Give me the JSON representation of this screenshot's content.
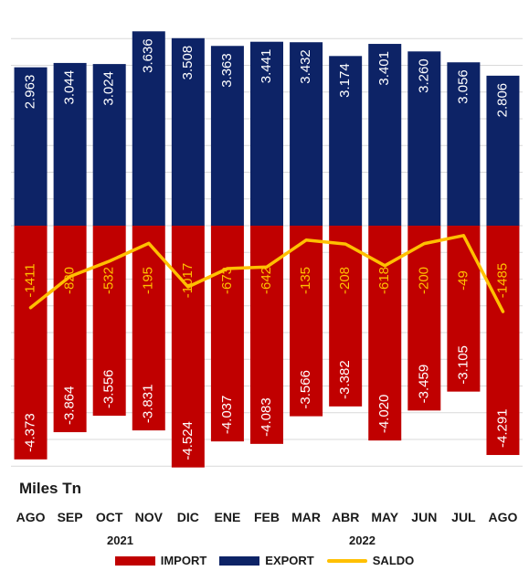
{
  "chart_data": {
    "type": "bar",
    "unit_label": "Miles Tn",
    "categories": [
      "AGO",
      "SEP",
      "OCT",
      "NOV",
      "DIC",
      "ENE",
      "FEB",
      "MAR",
      "ABR",
      "MAY",
      "JUN",
      "JUL",
      "AGO"
    ],
    "years": [
      {
        "label": "2021",
        "first_category_index": 0
      },
      {
        "label": "2022",
        "first_category_index": 5
      }
    ],
    "ylim": [
      -4700,
      3800
    ],
    "grid": true,
    "legend_position": "bottom",
    "series": [
      {
        "name": "IMPORT",
        "color": "#c00000",
        "values": [
          -4373,
          -3864,
          -3556,
          -3831,
          -4524,
          -4037,
          -4083,
          -3566,
          -3382,
          -4020,
          -3459,
          -3105,
          -4291
        ],
        "labels": [
          "-4.373",
          "-3.864",
          "-3.556",
          "-3.831",
          "-4.524",
          "-4.037",
          "-4.083",
          "-3.566",
          "-3.382",
          "-4.020",
          "-3.459",
          "-3.105",
          "-4.291"
        ]
      },
      {
        "name": "EXPORT",
        "color": "#0d2366",
        "values": [
          2963,
          3044,
          3024,
          3636,
          3508,
          3363,
          3441,
          3432,
          3174,
          3401,
          3260,
          3056,
          2806
        ],
        "labels": [
          "2.963",
          "3.044",
          "3.024",
          "3.636",
          "3.508",
          "3.363",
          "3.441",
          "3.432",
          "3.174",
          "3.401",
          "3.260",
          "3.056",
          "2.806"
        ]
      },
      {
        "name": "SALDO",
        "color": "#ffc000",
        "values": [
          -1411,
          -820,
          -532,
          -195,
          -1017,
          -673,
          -642,
          -135,
          -208,
          -618,
          -200,
          -49,
          -1485
        ],
        "labels": [
          "-1411",
          "-820",
          "-532",
          "-195",
          "-1017",
          "-673",
          "-642",
          "-135",
          "-208",
          "-618",
          "-200",
          "-49",
          "-1485"
        ]
      }
    ]
  }
}
